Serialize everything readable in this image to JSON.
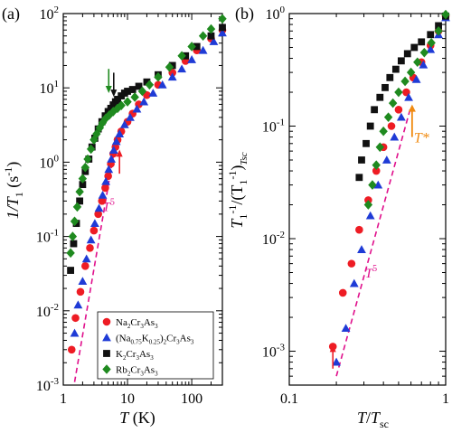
{
  "colors": {
    "na": "#ee1c24",
    "nak": "#1f3bd6",
    "k": "#111111",
    "rb": "#1f8a1f",
    "fit_line": "#e0108c",
    "tstar_arrow": "#f08a10",
    "arrow_red": "#ee1c24",
    "arrow_green": "#1f8a1f",
    "arrow_black": "#111111"
  },
  "chart_data": [
    {
      "type": "scatter",
      "panel_label": "(a)",
      "xlabel_main": "T",
      "xlabel_unit": "(K)",
      "ylabel_main": "1/T",
      "ylabel_sub": "1",
      "ylabel_unit": "(s",
      "ylabel_unit_sup": "-1",
      "ylabel_unit_close": ")",
      "x_scale": "log",
      "y_scale": "log",
      "xlim": [
        1,
        300
      ],
      "ylim": [
        0.001,
        100
      ],
      "x_ticks": [
        {
          "value": 1,
          "label": "1"
        },
        {
          "value": 10,
          "label": "10"
        },
        {
          "value": 100,
          "label": "100"
        }
      ],
      "y_ticks": [
        {
          "value": 0.001,
          "base": "10",
          "exp": "-3"
        },
        {
          "value": 0.01,
          "base": "10",
          "exp": "-2"
        },
        {
          "value": 0.1,
          "base": "10",
          "exp": "-1"
        },
        {
          "value": 1,
          "base": "10",
          "exp": "0"
        },
        {
          "value": 10,
          "base": "10",
          "exp": "1"
        },
        {
          "value": 100,
          "base": "10",
          "exp": "2"
        }
      ],
      "grid": false,
      "legend": {
        "placement": "bottom-right",
        "entries": [
          {
            "series": "na",
            "parts": [
              [
                "Na",
                "n"
              ],
              [
                "2",
                "s"
              ],
              [
                "Cr",
                "n"
              ],
              [
                "3",
                "s"
              ],
              [
                "As",
                "n"
              ],
              [
                "3",
                "s"
              ]
            ]
          },
          {
            "series": "nak",
            "parts": [
              [
                "(Na",
                "n"
              ],
              [
                "0.75",
                "s"
              ],
              [
                "K",
                "n"
              ],
              [
                "0.25",
                "s"
              ],
              [
                ")",
                "n"
              ],
              [
                "2",
                "s"
              ],
              [
                "Cr",
                "n"
              ],
              [
                "3",
                "s"
              ],
              [
                "As",
                "n"
              ],
              [
                "3",
                "s"
              ]
            ]
          },
          {
            "series": "k",
            "parts": [
              [
                "K",
                "n"
              ],
              [
                "2",
                "s"
              ],
              [
                "Cr",
                "n"
              ],
              [
                "3",
                "s"
              ],
              [
                "As",
                "n"
              ],
              [
                "3",
                "s"
              ]
            ]
          },
          {
            "series": "rb",
            "parts": [
              [
                "Rb",
                "n"
              ],
              [
                "2",
                "s"
              ],
              [
                "Cr",
                "n"
              ],
              [
                "3",
                "s"
              ],
              [
                "As",
                "n"
              ],
              [
                "3",
                "s"
              ]
            ]
          }
        ]
      },
      "fit_line": {
        "label": "T",
        "label_sup": "5",
        "points": [
          [
            1.5,
            0.0011
          ],
          [
            6.0,
            1.2
          ]
        ],
        "label_at": [
          4.1,
          0.22
        ]
      },
      "arrows": [
        {
          "color_key": "arrow_green",
          "x": 5.1,
          "y_from": 18,
          "y_to": 9.0
        },
        {
          "color_key": "arrow_black",
          "x": 6.1,
          "y_from": 16,
          "y_to": 8.0
        },
        {
          "color_key": "arrow_red",
          "x": 7.5,
          "y_from": 0.7,
          "y_to": 1.4
        }
      ],
      "series": [
        {
          "key": "na",
          "marker": "circle",
          "points": [
            [
              1.35,
              0.003
            ],
            [
              1.55,
              0.008
            ],
            [
              1.85,
              0.018
            ],
            [
              2.2,
              0.04
            ],
            [
              2.6,
              0.07
            ],
            [
              3.0,
              0.12
            ],
            [
              3.5,
              0.2
            ],
            [
              4.0,
              0.3
            ],
            [
              4.5,
              0.45
            ],
            [
              5.0,
              0.65
            ],
            [
              5.5,
              0.95
            ],
            [
              6.0,
              1.3
            ],
            [
              6.5,
              1.6
            ],
            [
              7.0,
              2.0
            ],
            [
              8.0,
              2.6
            ],
            [
              10.0,
              3.5
            ],
            [
              12.0,
              4.5
            ],
            [
              15.0,
              6.0
            ],
            [
              20.0,
              8.0
            ],
            [
              30.0,
              11.0
            ],
            [
              50.0,
              16.0
            ],
            [
              80.0,
              23.0
            ],
            [
              120.0,
              32.0
            ],
            [
              200.0,
              46.0
            ],
            [
              300.0,
              60.0
            ]
          ]
        },
        {
          "key": "nak",
          "marker": "triangle",
          "points": [
            [
              1.5,
              0.005
            ],
            [
              1.7,
              0.012
            ],
            [
              2.0,
              0.025
            ],
            [
              2.3,
              0.05
            ],
            [
              2.7,
              0.09
            ],
            [
              3.1,
              0.15
            ],
            [
              3.6,
              0.24
            ],
            [
              4.1,
              0.36
            ],
            [
              4.6,
              0.55
            ],
            [
              5.1,
              0.8
            ],
            [
              5.6,
              1.1
            ],
            [
              6.1,
              1.45
            ],
            [
              6.7,
              1.9
            ],
            [
              7.5,
              2.4
            ],
            [
              9.0,
              3.2
            ],
            [
              11.0,
              4.0
            ],
            [
              14.0,
              5.2
            ],
            [
              18.0,
              6.5
            ],
            [
              25.0,
              8.5
            ],
            [
              35.0,
              11.0
            ],
            [
              50.0,
              14.0
            ],
            [
              70.0,
              18.0
            ],
            [
              100.0,
              24.0
            ],
            [
              150.0,
              32.0
            ],
            [
              220.0,
              42.0
            ],
            [
              300.0,
              55.0
            ]
          ]
        },
        {
          "key": "k",
          "marker": "square",
          "points": [
            [
              1.3,
              0.035
            ],
            [
              1.45,
              0.08
            ],
            [
              1.6,
              0.15
            ],
            [
              1.8,
              0.3
            ],
            [
              2.0,
              0.5
            ],
            [
              2.2,
              0.75
            ],
            [
              2.5,
              1.1
            ],
            [
              2.8,
              1.6
            ],
            [
              3.1,
              2.1
            ],
            [
              3.5,
              2.8
            ],
            [
              4.0,
              3.5
            ],
            [
              4.5,
              4.2
            ],
            [
              5.0,
              4.8
            ],
            [
              5.5,
              5.3
            ],
            [
              6.0,
              5.9
            ],
            [
              6.5,
              6.5
            ],
            [
              7.0,
              7.0
            ],
            [
              8.0,
              7.8
            ],
            [
              9.0,
              8.5
            ],
            [
              10.0,
              9.0
            ],
            [
              12.0,
              9.5
            ],
            [
              15.0,
              10.5
            ],
            [
              20.0,
              12.0
            ],
            [
              30.0,
              15.0
            ],
            [
              50.0,
              20.0
            ],
            [
              80.0,
              27.0
            ],
            [
              120.0,
              36.0
            ],
            [
              200.0,
              50.0
            ],
            [
              300.0,
              65.0
            ]
          ]
        },
        {
          "key": "rb",
          "marker": "diamond",
          "points": [
            [
              1.3,
              0.06
            ],
            [
              1.4,
              0.1
            ],
            [
              1.5,
              0.16
            ],
            [
              1.65,
              0.25
            ],
            [
              1.8,
              0.4
            ],
            [
              2.0,
              0.6
            ],
            [
              2.2,
              0.85
            ],
            [
              2.4,
              1.1
            ],
            [
              2.7,
              1.5
            ],
            [
              3.0,
              2.0
            ],
            [
              3.3,
              2.4
            ],
            [
              3.7,
              2.9
            ],
            [
              4.1,
              3.4
            ],
            [
              4.6,
              3.9
            ],
            [
              5.2,
              4.3
            ],
            [
              6.0,
              4.8
            ],
            [
              7.0,
              5.3
            ],
            [
              8.0,
              5.8
            ],
            [
              10.0,
              6.5
            ],
            [
              13.0,
              7.5
            ],
            [
              17.0,
              9.0
            ],
            [
              22.0,
              11.0
            ],
            [
              30.0,
              14.0
            ],
            [
              45.0,
              19.0
            ],
            [
              70.0,
              27.0
            ],
            [
              100.0,
              36.0
            ],
            [
              150.0,
              50.0
            ],
            [
              200.0,
              62.0
            ],
            [
              300.0,
              85.0
            ]
          ]
        }
      ]
    },
    {
      "type": "scatter",
      "panel_label": "(b)",
      "xlabel_main": "T",
      "xlabel_slash": "/",
      "xlabel_main2": "T",
      "xlabel_sub": "sc",
      "ylabel_p1": "T",
      "ylabel_p1_sub": "1",
      "ylabel_p1_sup": "-1",
      "ylabel_p2": "/(T",
      "ylabel_p2_sub": "1",
      "ylabel_p2_sup": "-1",
      "ylabel_p3": ")",
      "ylabel_p3_sub": "Tsc",
      "x_scale": "log",
      "y_scale": "log",
      "xlim": [
        0.1,
        1
      ],
      "ylim": [
        0.0005,
        1
      ],
      "x_ticks": [
        {
          "value": 0.1,
          "label": "0.1"
        },
        {
          "value": 1,
          "label": "1"
        }
      ],
      "y_ticks": [
        {
          "value": 0.001,
          "base": "10",
          "exp": "-3"
        },
        {
          "value": 0.01,
          "base": "10",
          "exp": "-2"
        },
        {
          "value": 0.1,
          "base": "10",
          "exp": "-1"
        },
        {
          "value": 1,
          "base": "10",
          "exp": "0"
        }
      ],
      "grid": false,
      "fit_line": {
        "label": "T",
        "label_sup": "5",
        "points": [
          [
            0.2,
            0.0006
          ],
          [
            0.6,
            0.15
          ]
        ],
        "label_at": [
          0.305,
          0.0045
        ]
      },
      "tstar_arrow": {
        "label": "T*",
        "x": 0.61,
        "y_from": 0.08,
        "y_to": 0.15
      },
      "arrows": [
        {
          "color_key": "arrow_red",
          "x": 0.19,
          "y_from": 0.0007,
          "y_to": 0.0011
        }
      ],
      "series": [
        {
          "key": "na",
          "marker": "circle",
          "points": [
            [
              0.19,
              0.0011
            ],
            [
              0.22,
              0.0033
            ],
            [
              0.25,
              0.006
            ],
            [
              0.28,
              0.012
            ],
            [
              0.32,
              0.022
            ],
            [
              0.36,
              0.04
            ],
            [
              0.4,
              0.065
            ],
            [
              0.45,
              0.1
            ],
            [
              0.5,
              0.14
            ],
            [
              0.56,
              0.2
            ],
            [
              0.62,
              0.27
            ],
            [
              0.7,
              0.37
            ],
            [
              0.8,
              0.52
            ],
            [
              0.9,
              0.7
            ],
            [
              1.0,
              0.95
            ]
          ]
        },
        {
          "key": "nak",
          "marker": "triangle",
          "points": [
            [
              0.2,
              0.0008
            ],
            [
              0.23,
              0.0016
            ],
            [
              0.26,
              0.004
            ],
            [
              0.29,
              0.008
            ],
            [
              0.33,
              0.016
            ],
            [
              0.37,
              0.03
            ],
            [
              0.42,
              0.05
            ],
            [
              0.47,
              0.08
            ],
            [
              0.52,
              0.12
            ],
            [
              0.58,
              0.18
            ],
            [
              0.65,
              0.26
            ],
            [
              0.72,
              0.35
            ],
            [
              0.8,
              0.48
            ],
            [
              0.9,
              0.65
            ],
            [
              1.0,
              0.92
            ]
          ]
        },
        {
          "key": "k",
          "marker": "square",
          "points": [
            [
              0.28,
              0.035
            ],
            [
              0.29,
              0.05
            ],
            [
              0.31,
              0.07
            ],
            [
              0.33,
              0.1
            ],
            [
              0.35,
              0.14
            ],
            [
              0.38,
              0.18
            ],
            [
              0.41,
              0.22
            ],
            [
              0.44,
              0.27
            ],
            [
              0.48,
              0.32
            ],
            [
              0.52,
              0.38
            ],
            [
              0.57,
              0.44
            ],
            [
              0.63,
              0.5
            ],
            [
              0.7,
              0.56
            ],
            [
              0.8,
              0.65
            ],
            [
              0.9,
              0.78
            ],
            [
              1.0,
              0.95
            ]
          ]
        },
        {
          "key": "rb",
          "marker": "diamond",
          "points": [
            [
              0.32,
              0.02
            ],
            [
              0.34,
              0.03
            ],
            [
              0.36,
              0.045
            ],
            [
              0.38,
              0.065
            ],
            [
              0.4,
              0.09
            ],
            [
              0.43,
              0.12
            ],
            [
              0.46,
              0.16
            ],
            [
              0.5,
              0.2
            ],
            [
              0.55,
              0.25
            ],
            [
              0.6,
              0.3
            ],
            [
              0.66,
              0.37
            ],
            [
              0.73,
              0.45
            ],
            [
              0.81,
              0.55
            ],
            [
              0.9,
              0.7
            ],
            [
              1.0,
              0.98
            ]
          ]
        }
      ]
    }
  ]
}
